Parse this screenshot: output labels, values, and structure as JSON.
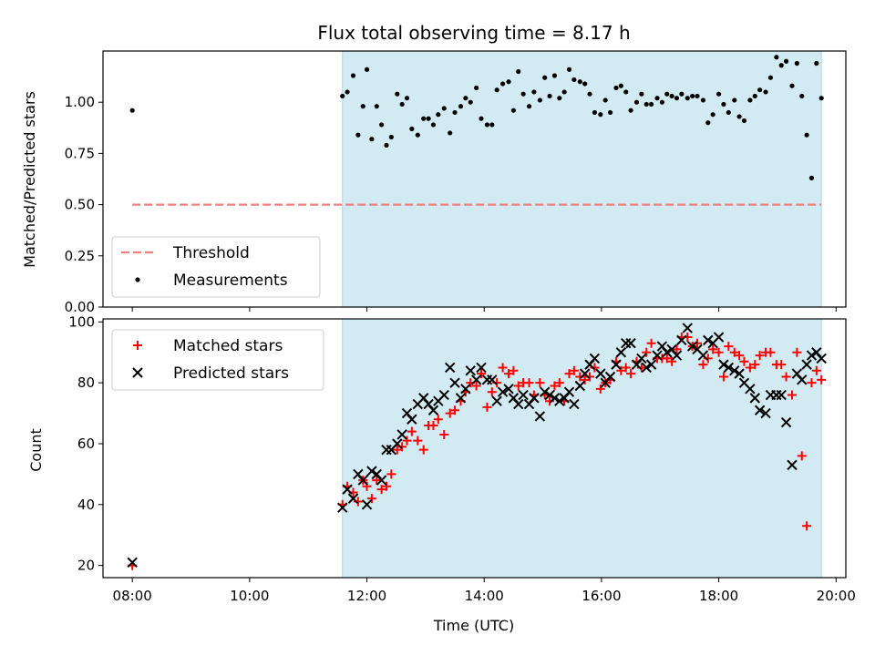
{
  "figure": {
    "title": "Flux total observing time = 8.17 h",
    "xlabel": "Time (UTC)"
  },
  "chart_data": [
    {
      "type": "scatter",
      "ylabel": "Matched/Predicted stars",
      "xlim": [
        "07:30",
        "20:10"
      ],
      "ylim": [
        0,
        1.25
      ],
      "yticks": [
        "0.00",
        "0.25",
        "0.50",
        "0.75",
        "1.00"
      ],
      "xticks_shown": false,
      "grid": false,
      "shaded_interval": {
        "x": [
          "11:35",
          "19:45"
        ],
        "color": "#add8e6"
      },
      "legend": {
        "placement": "lower-left"
      },
      "series": [
        {
          "name": "Threshold",
          "style": "dashed-line",
          "color": "#f08080",
          "x": [
            "08:00",
            "19:45"
          ],
          "y": [
            0.5,
            0.5
          ]
        },
        {
          "name": "Measurements",
          "style": "dot",
          "color": "#000000",
          "x": [
            "08:00",
            "11:35",
            "11:40",
            "11:46",
            "11:51",
            "11:56",
            "12:00",
            "12:05",
            "12:10",
            "12:15",
            "12:20",
            "12:25",
            "12:31",
            "12:36",
            "12:41",
            "12:46",
            "12:52",
            "12:58",
            "13:03",
            "13:08",
            "13:13",
            "13:19",
            "13:25",
            "13:30",
            "13:36",
            "13:41",
            "13:46",
            "13:52",
            "13:57",
            "14:03",
            "14:08",
            "14:13",
            "14:19",
            "14:25",
            "14:30",
            "14:35",
            "14:40",
            "14:46",
            "14:51",
            "14:57",
            "15:02",
            "15:07",
            "15:12",
            "15:17",
            "15:22",
            "15:27",
            "15:32",
            "15:38",
            "15:43",
            "15:48",
            "15:53",
            "15:59",
            "16:04",
            "16:09",
            "16:15",
            "16:20",
            "16:25",
            "16:30",
            "16:36",
            "16:41",
            "16:46",
            "16:51",
            "16:57",
            "17:02",
            "17:07",
            "17:12",
            "17:17",
            "17:22",
            "17:28",
            "17:33",
            "17:38",
            "17:44",
            "17:49",
            "17:54",
            "18:00",
            "18:05",
            "18:10",
            "18:16",
            "18:21",
            "18:26",
            "18:32",
            "18:37",
            "18:42",
            "18:48",
            "18:53",
            "18:59",
            "19:04",
            "19:09",
            "19:15",
            "19:20",
            "19:25",
            "19:30",
            "19:35",
            "19:40",
            "19:45"
          ],
          "y": [
            0.96,
            1.03,
            1.05,
            1.13,
            0.84,
            0.98,
            1.16,
            0.82,
            0.98,
            0.89,
            0.79,
            0.83,
            1.04,
            0.99,
            1.02,
            0.87,
            0.84,
            0.92,
            0.92,
            0.89,
            0.94,
            0.97,
            0.85,
            0.95,
            0.98,
            1.02,
            1.0,
            1.07,
            0.92,
            0.89,
            0.89,
            1.06,
            1.09,
            1.1,
            0.96,
            1.15,
            1.04,
            0.98,
            1.05,
            1.01,
            1.12,
            1.03,
            1.13,
            1.02,
            1.05,
            1.16,
            1.11,
            1.1,
            1.09,
            1.04,
            0.95,
            0.94,
            1.01,
            0.95,
            1.07,
            1.08,
            1.05,
            0.96,
            1.0,
            1.04,
            0.99,
            0.99,
            1.02,
            1.0,
            1.04,
            1.03,
            1.02,
            1.04,
            1.02,
            1.03,
            1.03,
            1.01,
            0.9,
            0.94,
            1.04,
            0.99,
            0.95,
            1.01,
            0.93,
            0.91,
            1.01,
            1.03,
            1.06,
            1.05,
            1.12,
            1.22,
            1.18,
            1.2,
            1.08,
            1.19,
            1.03,
            0.84,
            0.63,
            1.19,
            1.02
          ]
        }
      ]
    },
    {
      "type": "scatter",
      "ylabel": "Count",
      "xlim": [
        "07:30",
        "20:10"
      ],
      "ylim": [
        16,
        101
      ],
      "yticks": [
        "20",
        "40",
        "60",
        "80",
        "100"
      ],
      "xticks": [
        "08:00",
        "10:00",
        "12:00",
        "14:00",
        "16:00",
        "18:00",
        "20:00"
      ],
      "grid": false,
      "shaded_interval": {
        "x": [
          "11:35",
          "19:45"
        ],
        "color": "#add8e6"
      },
      "legend": {
        "placement": "upper-left"
      },
      "series": [
        {
          "name": "Matched stars",
          "marker": "plus",
          "color": "#ff0000",
          "x": [
            "08:00",
            "11:35",
            "11:40",
            "11:46",
            "11:51",
            "11:56",
            "12:00",
            "12:05",
            "12:10",
            "12:15",
            "12:20",
            "12:25",
            "12:31",
            "12:36",
            "12:41",
            "12:46",
            "12:52",
            "12:58",
            "13:03",
            "13:08",
            "13:13",
            "13:19",
            "13:25",
            "13:30",
            "13:36",
            "13:41",
            "13:46",
            "13:52",
            "13:57",
            "14:03",
            "14:08",
            "14:13",
            "14:19",
            "14:25",
            "14:30",
            "14:35",
            "14:40",
            "14:46",
            "14:51",
            "14:57",
            "15:02",
            "15:07",
            "15:12",
            "15:17",
            "15:22",
            "15:27",
            "15:32",
            "15:38",
            "15:43",
            "15:48",
            "15:53",
            "15:59",
            "16:04",
            "16:09",
            "16:15",
            "16:20",
            "16:25",
            "16:30",
            "16:36",
            "16:41",
            "16:46",
            "16:51",
            "16:57",
            "17:02",
            "17:07",
            "17:12",
            "17:17",
            "17:22",
            "17:28",
            "17:33",
            "17:38",
            "17:44",
            "17:49",
            "17:54",
            "18:00",
            "18:05",
            "18:10",
            "18:16",
            "18:21",
            "18:26",
            "18:32",
            "18:37",
            "18:42",
            "18:48",
            "18:53",
            "18:59",
            "19:04",
            "19:09",
            "19:15",
            "19:20",
            "19:25",
            "19:30",
            "19:35",
            "19:40",
            "19:45"
          ],
          "y": [
            20,
            40,
            46,
            44,
            41,
            48,
            46,
            42,
            48,
            45,
            46,
            50,
            58,
            59,
            61,
            64,
            61,
            58,
            66,
            66,
            68,
            63,
            70,
            71,
            74,
            77,
            80,
            79,
            83,
            72,
            77,
            80,
            85,
            83,
            84,
            79,
            80,
            80,
            76,
            80,
            76,
            74,
            79,
            80,
            74,
            83,
            84,
            82,
            81,
            82,
            85,
            78,
            80,
            81,
            87,
            84,
            85,
            83,
            87,
            85,
            90,
            93,
            88,
            88,
            88,
            87,
            91,
            95,
            95,
            92,
            93,
            86,
            88,
            91,
            90,
            82,
            92,
            90,
            89,
            87,
            85,
            86,
            89,
            90,
            90,
            86,
            86,
            82,
            76,
            90,
            56,
            33,
            80,
            84,
            81
          ]
        },
        {
          "name": "Predicted stars",
          "marker": "x",
          "color": "#000000",
          "x": [
            "08:00",
            "11:35",
            "11:40",
            "11:46",
            "11:51",
            "11:56",
            "12:00",
            "12:05",
            "12:10",
            "12:15",
            "12:20",
            "12:25",
            "12:31",
            "12:36",
            "12:41",
            "12:46",
            "12:52",
            "12:58",
            "13:03",
            "13:08",
            "13:13",
            "13:19",
            "13:25",
            "13:30",
            "13:36",
            "13:41",
            "13:46",
            "13:52",
            "13:57",
            "14:03",
            "14:08",
            "14:13",
            "14:19",
            "14:25",
            "14:30",
            "14:35",
            "14:40",
            "14:46",
            "14:51",
            "14:57",
            "15:02",
            "15:07",
            "15:12",
            "15:17",
            "15:22",
            "15:27",
            "15:32",
            "15:38",
            "15:43",
            "15:48",
            "15:53",
            "15:59",
            "16:04",
            "16:09",
            "16:15",
            "16:20",
            "16:25",
            "16:30",
            "16:36",
            "16:41",
            "16:46",
            "16:51",
            "16:57",
            "17:02",
            "17:07",
            "17:12",
            "17:17",
            "17:22",
            "17:28",
            "17:33",
            "17:38",
            "17:44",
            "17:49",
            "17:54",
            "18:00",
            "18:05",
            "18:10",
            "18:16",
            "18:21",
            "18:26",
            "18:32",
            "18:37",
            "18:42",
            "18:48",
            "18:53",
            "18:59",
            "19:04",
            "19:09",
            "19:15",
            "19:20",
            "19:25",
            "19:30",
            "19:35",
            "19:40",
            "19:45"
          ],
          "y": [
            21,
            39,
            45,
            42,
            50,
            48,
            40,
            51,
            50,
            48,
            58,
            58,
            60,
            63,
            70,
            68,
            73,
            75,
            73,
            71,
            74,
            76,
            85,
            80,
            75,
            78,
            84,
            81,
            85,
            81,
            81,
            74,
            77,
            78,
            75,
            73,
            76,
            73,
            75,
            69,
            77,
            76,
            75,
            74,
            75,
            77,
            73,
            79,
            83,
            86,
            88,
            83,
            80,
            82,
            86,
            90,
            93,
            93,
            86,
            88,
            85,
            86,
            89,
            92,
            90,
            91,
            89,
            94,
            98,
            92,
            91,
            89,
            94,
            93,
            95,
            86,
            85,
            84,
            83,
            80,
            78,
            75,
            71,
            70,
            76,
            76,
            76,
            67,
            53,
            83,
            81,
            86,
            89,
            90,
            88
          ]
        }
      ]
    }
  ]
}
